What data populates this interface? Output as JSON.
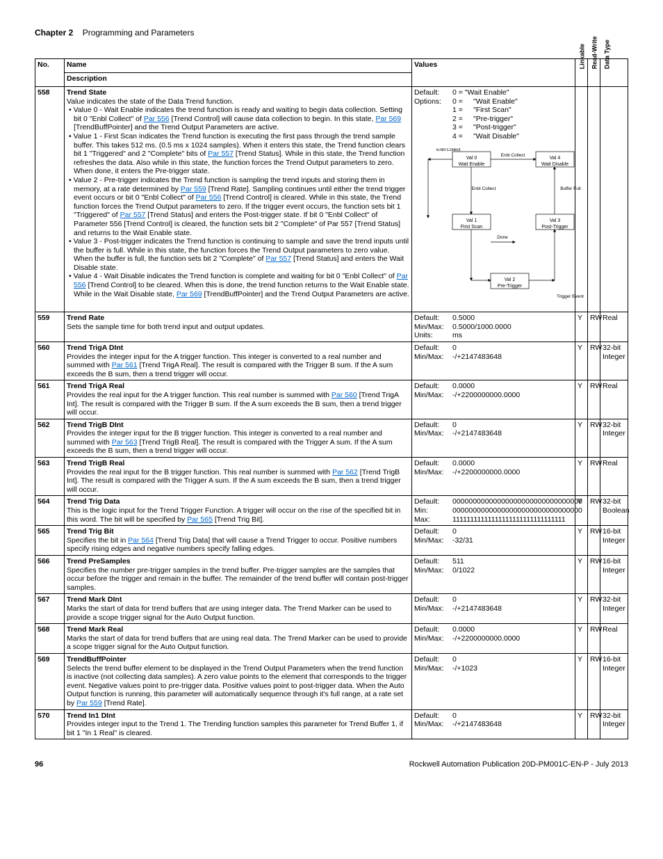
{
  "chapter": {
    "label": "Chapter 2",
    "title": "Programming and Parameters"
  },
  "header_row": {
    "no": "No.",
    "name": "Name",
    "desc": "Description",
    "values": "Values",
    "linkable": "Linkable",
    "rw": "Read-Write",
    "dtype": "Data Type"
  },
  "rows": [
    {
      "no": "558",
      "name": "Trend State",
      "desc_lead": "Value indicates the state of the Data Trend function.",
      "bullets": [
        "Value 0 - Wait Enable indicates the trend function is ready and waiting to begin data collection. Setting bit 0 \"Enbl Collect\" of <a class='link' href='#'>Par 556</a> [Trend Control] will cause data collection to begin. In this state, <a class='link' href='#'>Par 569</a> [TrendBuffPointer] and the Trend Output Parameters are active.",
        "Value 1 - First Scan indicates the Trend function is executing the first pass through the trend sample buffer. This takes 512 ms. (0.5 ms x 1024 samples). When it enters this state, the Trend function clears bit 1 \"Triggered\" and 2 \"Complete\" bits of <a class='link' href='#'>Par 557</a> [Trend Status]. While in this state, the Trend function refreshes the data. Also while in this state, the function forces the Trend Output parameters to zero. When done, it enters the Pre-trigger state.",
        "Value 2 - Pre-trigger indicates the Trend function is sampling the trend inputs and storing them in memory, at a rate determined by <a class='link' href='#'>Par 559</a> [Trend Rate]. Sampling continues until either the trend trigger event occurs or bit 0 \"Enbl Collect\" of <a class='link' href='#'>Par 556</a> [Trend Control] is cleared. While in this state, the Trend function forces the Trend Output parameters to zero. If the trigger event occurs, the function sets bit 1 \"Triggered\" of <a class='link' href='#'>Par 557</a> [Trend Status] and enters the Post-trigger state. If bit 0 \"Enbl Collect\" of Parameter 556 [Trend Control] is cleared, the function sets bit 2 \"Complete\" of Par 557 [Trend Status] and returns to the Wait Enable state.",
        "Value 3 - Post-trigger indicates the Trend function is continuing to sample and save the trend inputs until the buffer is full. While in this state, the function forces the Trend Output parameters to zero value. When the buffer is full, the function sets bit 2 \"Complete\" of <a class='link' href='#'>Par 557</a> [Trend Status] and enters the Wait Disable state.",
        "Value 4 - Wait Disable indicates the Trend function is complete and waiting for bit 0 \"Enbl Collect\" of <a class='link' href='#'>Par 556</a> [Trend Control] to be cleared. When this is done, the trend function returns to the Wait Enable state. While in the Wait Disable state, <a class='link' href='#'>Par 569</a> [TrendBuffPointer] and the Trend Output Parameters are active."
      ],
      "values": {
        "default": "0 =    \"Wait Enable\"",
        "options": [
          {
            "eq": "0 =",
            "txt": "\"Wait Enable\""
          },
          {
            "eq": "1 =",
            "txt": "\"First Scan\""
          },
          {
            "eq": "2 =",
            "txt": "\"Pre-trigger\""
          },
          {
            "eq": "3 =",
            "txt": "\"Post-trigger\""
          },
          {
            "eq": "4 =",
            "txt": "\"Wait Disable\""
          }
        ]
      },
      "diagram_labels": {
        "n0": "Val 0\nWait Enable",
        "n4": "Val 4\nWait Disable",
        "e1": "Enbl Collect",
        "e2": "Enbl Collect",
        "e3": "Enbl Collect",
        "buf": "Buffer Full",
        "n1": "Val 1\nFirst Scan",
        "n3": "Val 3\nPost-Trigger",
        "done": "Done",
        "n2": "Val 2\nPre-Trigger",
        "trig": "Trigger Event"
      },
      "linkable": "",
      "rw": "",
      "dtype": ""
    },
    {
      "no": "559",
      "name": "Trend Rate",
      "desc_body": "Sets the sample time for both trend input and output updates.",
      "values_plain": [
        [
          "Default:",
          "0.5000"
        ],
        [
          "Min/Max:",
          "0.5000/1000.0000"
        ],
        [
          "Units:",
          "ms"
        ]
      ],
      "linkable": "Y",
      "rw": "RW",
      "dtype": "Real"
    },
    {
      "no": "560",
      "name": "Trend TrigA DInt",
      "desc_body": "Provides the integer input for the A trigger function. This integer is converted to a real number and summed with <a class='link' href='#'>Par 561</a> [Trend TrigA Real]. The result is compared with the Trigger B sum. If the A sum exceeds the B sum, then a trend trigger will occur.",
      "values_plain": [
        [
          "Default:",
          "0"
        ],
        [
          "Min/Max:",
          "-/+2147483648"
        ]
      ],
      "linkable": "Y",
      "rw": "RW",
      "dtype": "32-bit Integer"
    },
    {
      "no": "561",
      "name": "Trend TrigA Real",
      "desc_body": "Provides the real input for the A trigger function. This real number is summed with <a class='link' href='#'>Par 560</a> [Trend TrigA Int]. The result is compared with the Trigger B sum. If the A sum exceeds the B sum, then a trend trigger will occur.",
      "values_plain": [
        [
          "Default:",
          "0.0000"
        ],
        [
          "Min/Max:",
          "-/+2200000000.0000"
        ]
      ],
      "linkable": "Y",
      "rw": "RW",
      "dtype": "Real"
    },
    {
      "no": "562",
      "name": "Trend TrigB DInt",
      "desc_body": "Provides the integer input for the B trigger function. This integer is converted to a real number and summed with <a class='link' href='#'>Par 563</a> [Trend TrigB Real]. The result is compared with the Trigger A sum. If the A sum exceeds the B sum, then a trend trigger will occur.",
      "values_plain": [
        [
          "Default:",
          "0"
        ],
        [
          "Min/Max:",
          "-/+2147483648"
        ]
      ],
      "linkable": "Y",
      "rw": "RW",
      "dtype": "32-bit Integer"
    },
    {
      "no": "563",
      "name": "Trend TrigB Real",
      "desc_body": "Provides the real input for the B trigger function. This real number is summed with <a class='link' href='#'>Par 562</a> [Trend TrigB Int]. The result is compared with the Trigger A sum. If the A sum exceeds the B sum, then a trend trigger will occur.",
      "values_plain": [
        [
          "Default:",
          "0.0000"
        ],
        [
          "Min/Max:",
          "-/+2200000000.0000"
        ]
      ],
      "linkable": "Y",
      "rw": "RW",
      "dtype": "Real"
    },
    {
      "no": "564",
      "name": "Trend Trig Data",
      "desc_body": "This is the logic input for the Trend Trigger Function. A trigger will occur on the rise of the specified bit in this word. The bit will be specified by <a class='link' href='#'>Par 565</a> [Trend Trig Bit].",
      "values_plain": [
        [
          "Default:",
          "00000000000000000000000000000000"
        ],
        [
          "Min:",
          "00000000000000000000000000000000"
        ],
        [
          "Max:",
          "11111111111111111111111111111111"
        ]
      ],
      "linkable": "Y",
      "rw": "RW",
      "dtype": "32-bit Boolean"
    },
    {
      "no": "565",
      "name": "Trend Trig Bit",
      "desc_body": "Specifies the bit in <a class='link' href='#'>Par 564</a> [Trend Trig Data] that will cause a Trend Trigger to occur. Positive numbers specify rising edges and negative numbers specify falling edges.",
      "values_plain": [
        [
          "Default:",
          "0"
        ],
        [
          "Min/Max:",
          "-32/31"
        ]
      ],
      "linkable": "Y",
      "rw": "RW",
      "dtype": "16-bit Integer"
    },
    {
      "no": "566",
      "name": "Trend PreSamples",
      "desc_body": "Specifies the number pre-trigger samples in the trend buffer. Pre-trigger samples are the samples that occur before the trigger and remain in the buffer. The remainder of the trend buffer will contain post-trigger samples.",
      "values_plain": [
        [
          "Default:",
          "511"
        ],
        [
          "Min/Max:",
          "0/1022"
        ]
      ],
      "linkable": "Y",
      "rw": "RW",
      "dtype": "16-bit Integer"
    },
    {
      "no": "567",
      "name": "Trend Mark DInt",
      "desc_body": "Marks the start of data for trend buffers that are using integer data. The Trend Marker can be used to provide a scope trigger signal for the Auto Output function.",
      "values_plain": [
        [
          "Default:",
          "0"
        ],
        [
          "Min/Max:",
          "-/+2147483648"
        ]
      ],
      "linkable": "Y",
      "rw": "RW",
      "dtype": "32-bit Integer"
    },
    {
      "no": "568",
      "name": "Trend Mark Real",
      "desc_body": "Marks the start of data for trend buffers that are using real data. The Trend Marker can be used to provide a scope trigger signal for the Auto Output function.",
      "values_plain": [
        [
          "Default:",
          "0.0000"
        ],
        [
          "Min/Max:",
          "-/+2200000000.0000"
        ]
      ],
      "linkable": "Y",
      "rw": "RW",
      "dtype": "Real"
    },
    {
      "no": "569",
      "name": "TrendBuffPointer",
      "desc_body": "Selects the trend buffer element to be displayed in the Trend Output Parameters when the trend function is inactive (not collecting data samples). A zero value points to the element that corresponds to the trigger event. Negative values point to pre-trigger data. Positive values point to post-trigger data. When the Auto Output function is running, this parameter will automatically sequence through it's full range, at a rate set by <a class='link' href='#'>Par 559</a> [Trend Rate].",
      "values_plain": [
        [
          "Default:",
          "0"
        ],
        [
          "Min/Max:",
          "-/+1023"
        ]
      ],
      "linkable": "Y",
      "rw": "RW",
      "dtype": "16-bit Integer"
    },
    {
      "no": "570",
      "name": "Trend In1 DInt",
      "desc_body": "Provides integer input to the Trend 1. The Trending function samples this parameter for Trend Buffer 1, if bit 1 \"In 1 Real\" is cleared.",
      "values_plain": [
        [
          "Default:",
          "0"
        ],
        [
          "Min/Max:",
          "-/+2147483648"
        ]
      ],
      "linkable": "Y",
      "rw": "RW",
      "dtype": "32-bit Integer"
    }
  ],
  "footer": {
    "page": "96",
    "pub": "Rockwell Automation Publication 20D-PM001C-EN-P - July 2013"
  }
}
